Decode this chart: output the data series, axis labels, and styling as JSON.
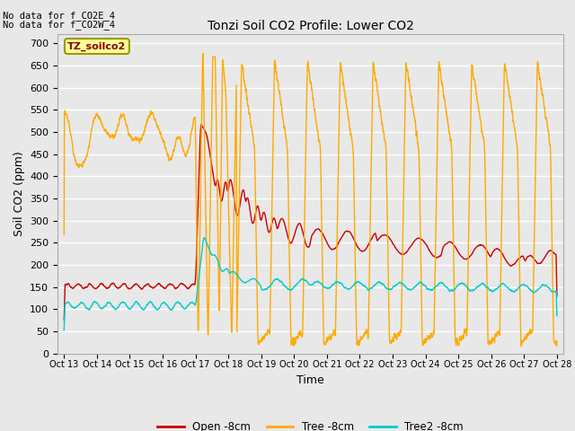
{
  "title": "Tonzi Soil CO2 Profile: Lower CO2",
  "xlabel": "Time",
  "ylabel": "Soil CO2 (ppm)",
  "ylim": [
    0,
    720
  ],
  "yticks": [
    0,
    50,
    100,
    150,
    200,
    250,
    300,
    350,
    400,
    450,
    500,
    550,
    600,
    650,
    700
  ],
  "bg_color": "#e8e8e8",
  "plot_bg_color": "#e8e8e8",
  "annotation_text1": "No data for f_CO2E_4",
  "annotation_text2": "No data for f_CO2W_4",
  "legend_box_label": "TZ_soilco2",
  "legend_box_color": "#ffff99",
  "legend_box_border": "#999900",
  "line_open_color": "#cc0000",
  "line_tree_color": "#ffaa00",
  "line_tree2_color": "#00cccc",
  "legend_open_label": "Open -8cm",
  "legend_tree_label": "Tree -8cm",
  "legend_tree2_label": "Tree2 -8cm",
  "xtick_labels": [
    "Oct 13",
    "Oct 14",
    "Oct 15",
    "Oct 16",
    "Oct 17",
    "Oct 18",
    "Oct 19",
    "Oct 20",
    "Oct 21",
    "Oct 22",
    "Oct 23",
    "Oct 24",
    "Oct 25",
    "Oct 26",
    "Oct 27",
    "Oct 28"
  ],
  "xtick_positions": [
    0,
    1,
    2,
    3,
    4,
    5,
    6,
    7,
    8,
    9,
    10,
    11,
    12,
    13,
    14,
    15
  ],
  "xlim": [
    -0.2,
    15.2
  ]
}
